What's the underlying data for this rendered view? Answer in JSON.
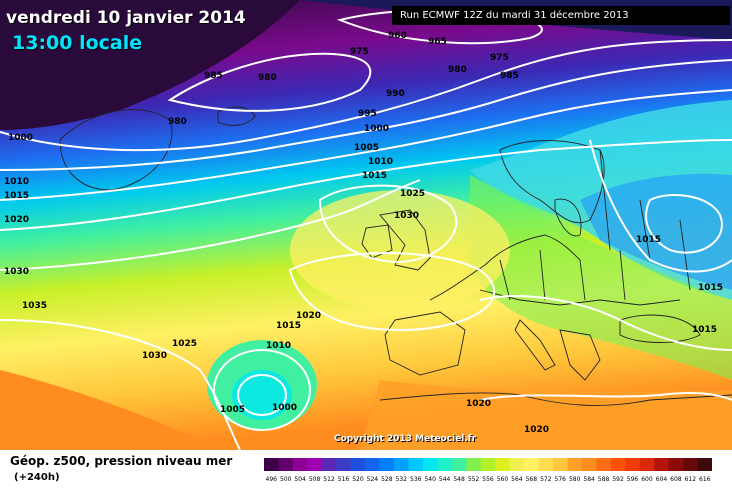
{
  "header": {
    "date": "vendredi 10 janvier 2014",
    "time": "13:00 locale",
    "run": "Run ECMWF 12Z du mardi 31 décembre 2013"
  },
  "copyright": "Copyright 2013 Meteociel.fr",
  "footer": {
    "title": "Géop. z500, pression niveau mer",
    "subtitle": "(+240h)"
  },
  "isobar_labels": [
    "960",
    "965",
    "975",
    "980",
    "985",
    "980",
    "980",
    "975",
    "985",
    "990",
    "995",
    "1000",
    "1005",
    "1010",
    "1015",
    "1000",
    "1010",
    "1015",
    "1020",
    "1025",
    "1030",
    "1030",
    "1035",
    "1030",
    "1025",
    "1020",
    "1015",
    "1010",
    "1005",
    "1000",
    "1020",
    "1020",
    "1015",
    "1015",
    "1015"
  ],
  "scale_values": [
    "496",
    "500",
    "504",
    "508",
    "512",
    "516",
    "520",
    "524",
    "528",
    "532",
    "536",
    "540",
    "544",
    "548",
    "552",
    "556",
    "560",
    "564",
    "568",
    "572",
    "576",
    "580",
    "584",
    "588",
    "592",
    "596",
    "600",
    "604",
    "608",
    "612",
    "616"
  ],
  "scale_colors": [
    "#3c0046",
    "#64006e",
    "#8c0096",
    "#a000b4",
    "#5a28b4",
    "#3c3cc8",
    "#1e50dc",
    "#1464f0",
    "#0080ff",
    "#00a0ff",
    "#00c8ff",
    "#00e6f0",
    "#20f0c8",
    "#40f0a0",
    "#80f050",
    "#b4f028",
    "#dcf01e",
    "#f0f050",
    "#fff064",
    "#ffdc50",
    "#ffc83c",
    "#ffa028",
    "#ff8c1e",
    "#ff6e14",
    "#ff500a",
    "#f03c0a",
    "#dc280a",
    "#b4140a",
    "#8c0a0a",
    "#640a0a",
    "#3c0a0a"
  ]
}
